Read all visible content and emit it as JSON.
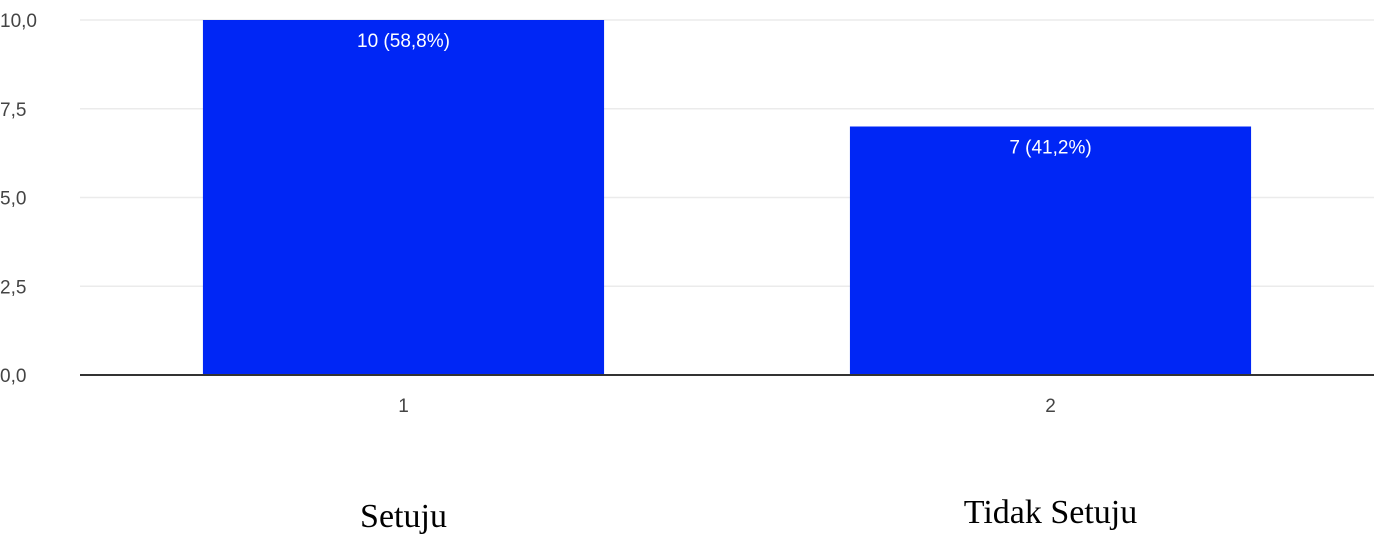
{
  "chart_data": {
    "type": "bar",
    "categories": [
      "1",
      "2"
    ],
    "values": [
      10,
      7
    ],
    "data_labels": [
      "10 (58,8%)",
      "7 (41,2%)"
    ],
    "category_captions": [
      "Setuju",
      "Tidak Setuju"
    ],
    "y_ticks": [
      "0,0",
      "2,5",
      "5,0",
      "7,5",
      "10,0"
    ],
    "ylim": [
      0,
      10
    ],
    "grid": true,
    "bar_color": "#0026F5",
    "grid_color": "#EBEBEB",
    "axis_color": "#333333"
  }
}
